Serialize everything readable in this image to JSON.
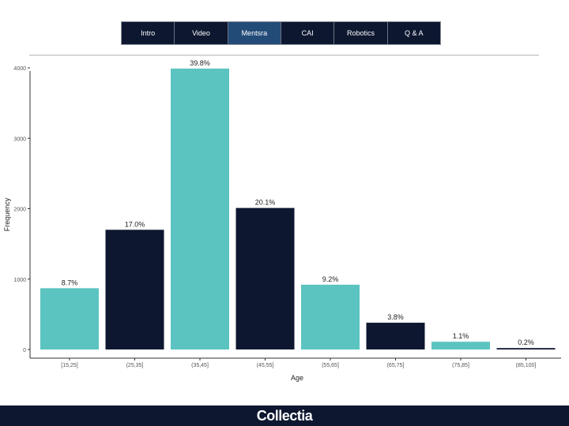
{
  "nav": {
    "tabs": [
      "Intro",
      "Video",
      "Mentsra",
      "CAI",
      "Robotics",
      "Q & A"
    ],
    "active_index": 2
  },
  "footer": {
    "logo": "Collectia"
  },
  "colors": {
    "teal": "#5bc4c0",
    "navy": "#0d1730",
    "active_tab": "#234b78"
  },
  "chart_data": {
    "type": "bar",
    "title": "",
    "xlabel": "Age",
    "ylabel": "Frequency",
    "ylim": [
      0,
      4000
    ],
    "yticks": [
      0,
      1000,
      2000,
      3000,
      4000
    ],
    "categories": [
      "[15,25]",
      "(25,35]",
      "(35,45]",
      "(45,55]",
      "(55,65]",
      "(65,75]",
      "(75,85]",
      "(85,100]"
    ],
    "values": [
      870,
      1700,
      3990,
      2010,
      920,
      380,
      110,
      20
    ],
    "labels": [
      "8.7%",
      "17.0%",
      "39.8%",
      "20.1%",
      "9.2%",
      "3.8%",
      "1.1%",
      "0.2%"
    ],
    "bar_colors": [
      "#5bc4c0",
      "#0d1730",
      "#5bc4c0",
      "#0d1730",
      "#5bc4c0",
      "#0d1730",
      "#5bc4c0",
      "#0d1730"
    ]
  }
}
